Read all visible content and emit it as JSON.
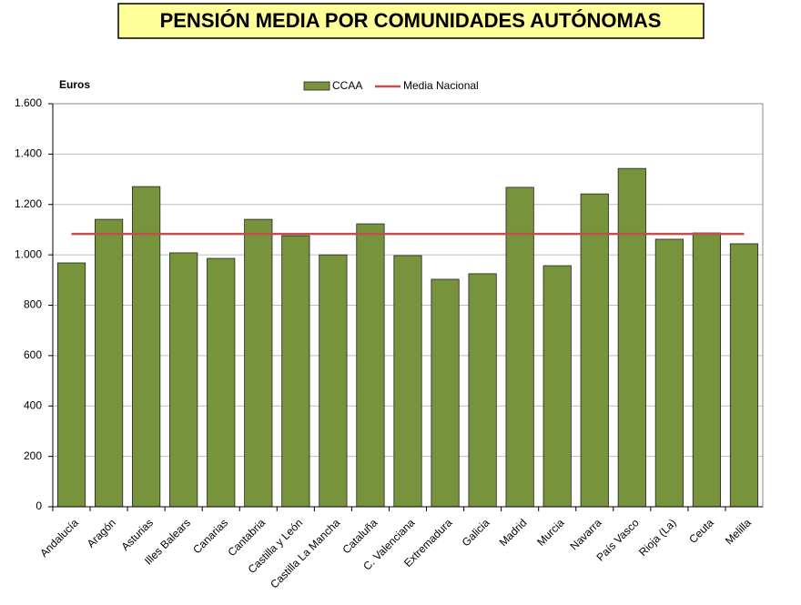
{
  "chart_data": {
    "type": "bar",
    "title": "PENSIÓN MEDIA POR COMUNIDADES AUTÓNOMAS",
    "y_label": "Euros",
    "categories": [
      "Andalucía",
      "Aragón",
      "Asturias",
      "Illes Balears",
      "Canarias",
      "Cantabria",
      "Castilla y León",
      "Castilla La Mancha",
      "Cataluña",
      "C. Valenciana",
      "Extremadura",
      "Galicia",
      "Madrid",
      "Murcia",
      "Navarra",
      "País Vasco",
      "Rioja (La)",
      "Ceuta",
      "Melilla"
    ],
    "series": [
      {
        "name": "CCAA",
        "color": "#77933c",
        "values": [
          968,
          1141,
          1271,
          1008,
          986,
          1141,
          1076,
          1000,
          1123,
          997,
          903,
          925,
          1268,
          957,
          1242,
          1343,
          1062,
          1087,
          1044
        ]
      }
    ],
    "reference_line": {
      "name": "Media Nacional",
      "color": "#c0504d",
      "value": 1083
    },
    "ylim": [
      0,
      1600
    ],
    "yticks": [
      0,
      200,
      400,
      600,
      800,
      {
        "value": 1000,
        "label": "1.000"
      },
      {
        "value": 1200,
        "label": "1.200"
      },
      {
        "value": 1400,
        "label": "1.400"
      },
      {
        "value": 1600,
        "label": "1.600"
      }
    ],
    "grid": true
  }
}
